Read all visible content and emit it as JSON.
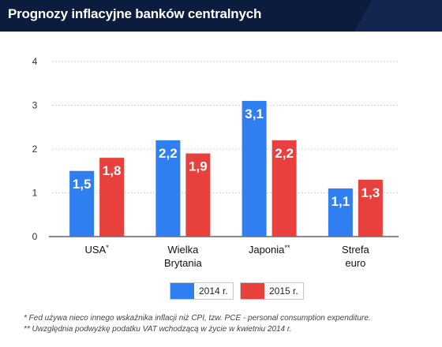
{
  "header": {
    "title": "Prognozy inflacyjne banków centralnych"
  },
  "colors": {
    "header_bg": "#0b1c3f",
    "series_2014": "#2f7ff0",
    "series_2015": "#e8413d",
    "grid": "#c8c8c8"
  },
  "chart_data": {
    "type": "bar",
    "categories": [
      {
        "lines": [
          "USA"
        ],
        "sup": "*"
      },
      {
        "lines": [
          "Wielka",
          "Brytania"
        ],
        "sup": ""
      },
      {
        "lines": [
          "Japonia"
        ],
        "sup": "**"
      },
      {
        "lines": [
          "Strefa",
          "euro"
        ],
        "sup": ""
      }
    ],
    "series": [
      {
        "name": "2014 r.",
        "values": [
          1.5,
          2.2,
          3.1,
          1.1
        ],
        "labels": [
          "1,5",
          "2,2",
          "3,1",
          "1,1"
        ],
        "color": "#2f7ff0"
      },
      {
        "name": "2015 r.",
        "values": [
          1.8,
          1.9,
          2.2,
          1.3
        ],
        "labels": [
          "1,8",
          "1,9",
          "2,2",
          "1,3"
        ],
        "color": "#e8413d"
      }
    ],
    "yticks": [
      0,
      1,
      2,
      3,
      4
    ],
    "ylim": [
      0,
      4
    ],
    "grid": true,
    "legend": "bottom-center"
  },
  "footnotes": [
    "* Fed używa nieco innego wskaźnika inflacji niż CPI, tzw. PCE - personal consumption expenditure.",
    "** Uwzględnia podwyżkę podatku VAT wchodzącą w życie w kwietniu 2014 r."
  ]
}
